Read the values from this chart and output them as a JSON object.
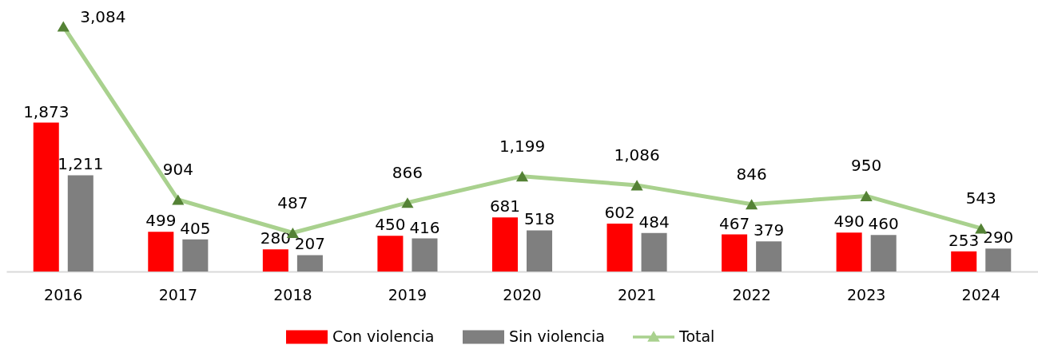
{
  "chart_data": {
    "type": "bar",
    "categories": [
      "2016",
      "2017",
      "2018",
      "2019",
      "2020",
      "2021",
      "2022",
      "2023",
      "2024"
    ],
    "series": [
      {
        "name": "Con violencia",
        "color": "#ff0000",
        "values": [
          1873,
          499,
          280,
          450,
          681,
          602,
          467,
          490,
          253
        ],
        "value_labels": [
          "1,873",
          "499",
          "280",
          "450",
          "681",
          "602",
          "467",
          "490",
          "253"
        ]
      },
      {
        "name": "Sin violencia",
        "color": "#7f7f7f",
        "values": [
          1211,
          405,
          207,
          416,
          518,
          484,
          379,
          460,
          290
        ],
        "value_labels": [
          "1,211",
          "405",
          "207",
          "416",
          "518",
          "484",
          "379",
          "460",
          "290"
        ]
      },
      {
        "name": "Total",
        "type": "line",
        "color": "#a9d18e",
        "colors": [
          "#548235",
          "#548235",
          "#548235",
          "#548235",
          "#548235",
          "#548235",
          "#548235",
          "#548235",
          "#548235"
        ],
        "values": [
          3084,
          904,
          487,
          866,
          1199,
          1086,
          846,
          950,
          543
        ],
        "value_labels": [
          "3,084",
          "904",
          "487",
          "866",
          "1,199",
          "1,086",
          "846",
          "950",
          "543"
        ]
      }
    ],
    "marker": "triangle",
    "legend": "bottom",
    "tick_labels": "x"
  }
}
